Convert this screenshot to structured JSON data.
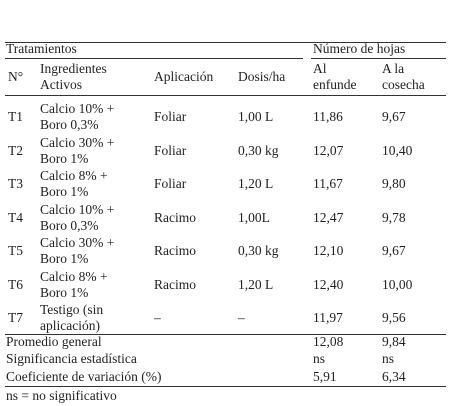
{
  "header": {
    "group": "Tratamientos",
    "leaves_group": "Número de hojas",
    "columns": [
      [
        "N°"
      ],
      [
        "Ingredientes",
        "Activos"
      ],
      [
        "Aplicación"
      ],
      [
        "Dosis/ha"
      ],
      [
        "Al",
        "enfunde"
      ],
      [
        "A la",
        "cosecha"
      ]
    ]
  },
  "rows": [
    [
      [
        "T1"
      ],
      [
        "Calcio 10% +",
        "Boro 0,3%"
      ],
      [
        "Foliar"
      ],
      [
        "1,00 L"
      ],
      [
        "11,86"
      ],
      [
        "9,67"
      ]
    ],
    [
      [
        "T2"
      ],
      [
        "Calcio 30% +",
        "Boro 1%"
      ],
      [
        "Foliar"
      ],
      [
        "0,30 kg"
      ],
      [
        "12,07"
      ],
      [
        "10,40"
      ]
    ],
    [
      [
        "T3"
      ],
      [
        "Calcio 8% +",
        "Boro 1%"
      ],
      [
        "Foliar"
      ],
      [
        "1,20 L"
      ],
      [
        "11,67"
      ],
      [
        "9,80"
      ]
    ],
    [
      [
        "T4"
      ],
      [
        "Calcio 10% +",
        "Boro 0,3%"
      ],
      [
        "Racimo"
      ],
      [
        "1,00L"
      ],
      [
        "12,47"
      ],
      [
        "9,78"
      ]
    ],
    [
      [
        "T5"
      ],
      [
        "Calcio 30% +",
        "Boro 1%"
      ],
      [
        "Racimo"
      ],
      [
        "0,30 kg"
      ],
      [
        "12,10"
      ],
      [
        "9,67"
      ]
    ],
    [
      [
        "T6"
      ],
      [
        "Calcio 8% +",
        "Boro 1%"
      ],
      [
        "Racimo"
      ],
      [
        "1,20 L"
      ],
      [
        "12,40"
      ],
      [
        "10,00"
      ]
    ],
    [
      [
        "T7"
      ],
      [
        "Testigo (sin",
        "aplicación)"
      ],
      [
        "–"
      ],
      [
        "–"
      ],
      [
        "11,97"
      ],
      [
        "9,56"
      ]
    ]
  ],
  "summary": [
    {
      "label": "Promedio general",
      "values": [
        "12,08",
        "9,84"
      ]
    },
    {
      "label": "Significancia estadística",
      "values": [
        "ns",
        "ns"
      ]
    },
    {
      "label": "Coeficiente de variación (%)",
      "values": [
        "5,91",
        "6,34"
      ]
    }
  ],
  "footnote": "ns = no significativo"
}
